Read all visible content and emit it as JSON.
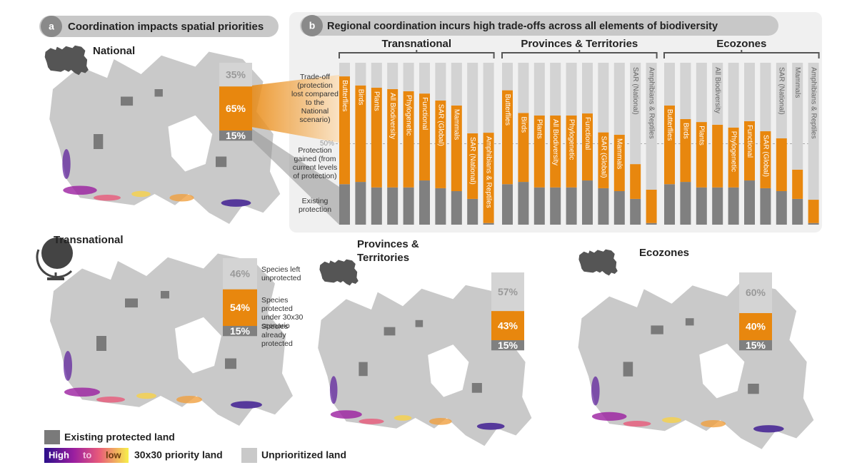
{
  "panel_a": {
    "letter": "a",
    "title": "Coordination impacts spatial priorities",
    "maps": [
      {
        "name": "National",
        "values": [
          35,
          65,
          15
        ],
        "value_labels": [
          "35%",
          "65%",
          "15%"
        ]
      },
      {
        "name": "Transnational",
        "values": [
          46,
          54,
          15
        ],
        "value_labels": [
          "46%",
          "54%",
          "15%"
        ],
        "annotations": [
          "Species left unprotected",
          "Species protected under 30x30 scenario",
          "Species already protected"
        ]
      },
      {
        "name": "Provinces & Territories",
        "values": [
          57,
          43,
          15
        ],
        "value_labels": [
          "57%",
          "43%",
          "15%"
        ]
      },
      {
        "name": "Ecozones",
        "values": [
          60,
          40,
          15
        ],
        "value_labels": [
          "60%",
          "40%",
          "15%"
        ]
      }
    ]
  },
  "legend": {
    "protected": "Existing protected land",
    "gradient": [
      "High",
      "to",
      "low"
    ],
    "priority": "30x30 priority land",
    "unprioritized": "Unprioritized land"
  },
  "chart_data": {
    "type": "stacked-bar",
    "letter": "b",
    "title": "Regional coordination incurs high trade-offs across all elements of biodiversity",
    "ylim": [
      0,
      100
    ],
    "yticks": [
      {
        "value": 50,
        "label": "50%"
      }
    ],
    "series": [
      {
        "name": "Existing protection",
        "color": "#808080"
      },
      {
        "name": "Protection gained (from current levels of protection)",
        "color": "#e8870e"
      },
      {
        "name": "Trade-off (protection lost compared to the National scenario)",
        "color": "#d3d3d3"
      }
    ],
    "groups": [
      {
        "name": "Transnational",
        "categories": [
          "Butterflies",
          "Birds",
          "Plants",
          "All Biodiversity",
          "Phylogenetic",
          "Functional",
          "SAR (Global)",
          "Mammals",
          "SAR (National)",
          "Amphibians & Reptiles"
        ],
        "values": [
          [
            25,
            26.4,
            23,
            23,
            23,
            27.3,
            22.5,
            20.7,
            15.9,
            1
          ],
          [
            66.6,
            59.6,
            61.6,
            60.7,
            59.4,
            53.7,
            54.2,
            52.9,
            40.5,
            55.8
          ],
          [
            8.4,
            14,
            15.4,
            16.3,
            17.6,
            19,
            23.3,
            26.4,
            43.6,
            43.2
          ]
        ]
      },
      {
        "name": "Provinces & Territories",
        "categories": [
          "Butterflies",
          "Birds",
          "Plants",
          "All Biodiversity",
          "Phylogenetic",
          "Functional",
          "SAR (Global)",
          "Mammals",
          "SAR (National)",
          "Amphibians & Reptiles"
        ],
        "values": [
          [
            25,
            26.4,
            23,
            23,
            23,
            27.3,
            22.5,
            20.7,
            15.9,
            1
          ],
          [
            58,
            42.6,
            44.4,
            44.4,
            44.4,
            41.4,
            34.5,
            34.8,
            21.5,
            20.6
          ],
          [
            17,
            31,
            32.6,
            32.6,
            32.6,
            31.3,
            43,
            44.5,
            62.6,
            78.4
          ]
        ]
      },
      {
        "name": "Ecozones",
        "categories": [
          "Butterflies",
          "Birds",
          "Plants",
          "All Biodiversity",
          "Phylogenetic",
          "Functional",
          "SAR (Global)",
          "SAR (National)",
          "Mammals",
          "Amphibians & Reptiles"
        ],
        "values": [
          [
            25,
            26.4,
            23,
            23,
            23,
            27.3,
            22.5,
            20.7,
            15.9,
            1
          ],
          [
            48.6,
            38.8,
            40.4,
            38.7,
            37,
            36.6,
            35.2,
            32.6,
            18.1,
            14.4
          ],
          [
            26.4,
            34.8,
            36.6,
            38.3,
            40,
            36.1,
            42.3,
            46.7,
            66,
            84.6
          ]
        ]
      }
    ]
  }
}
